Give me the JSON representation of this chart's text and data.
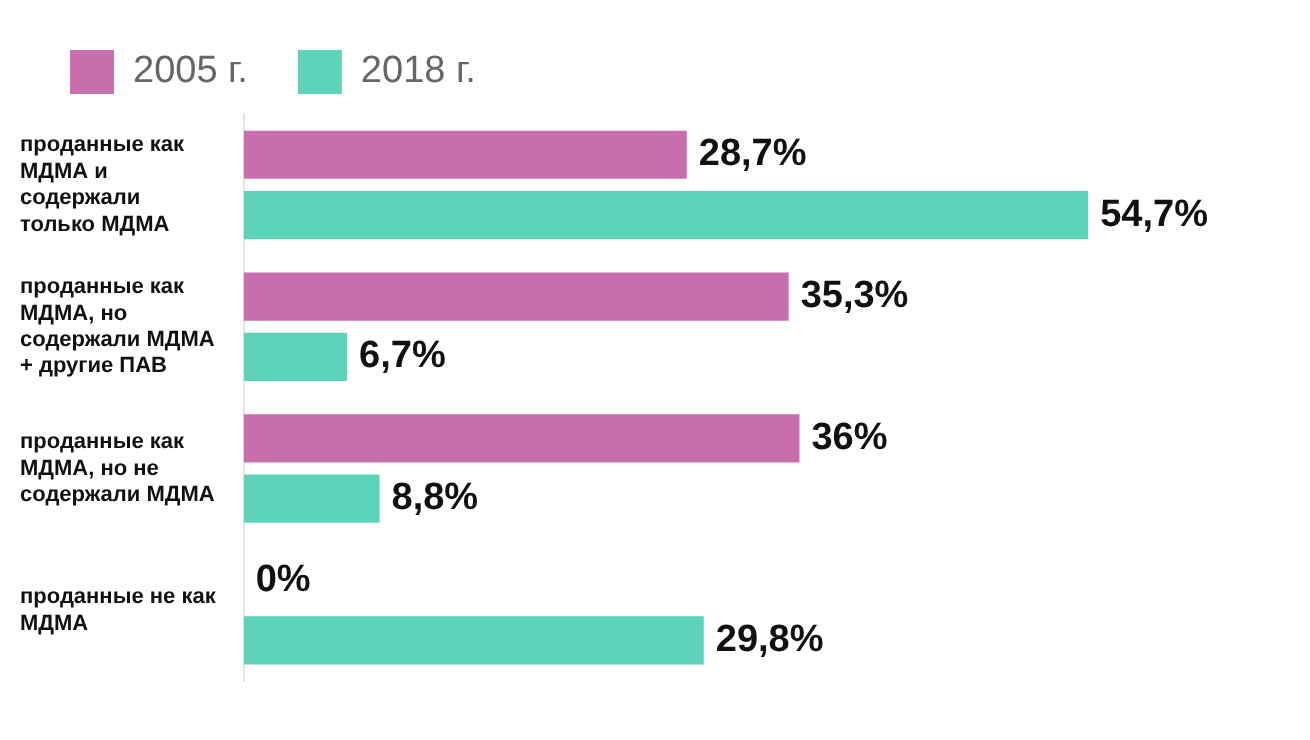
{
  "chart_data": {
    "type": "bar",
    "orientation": "horizontal",
    "legend": "top left",
    "categories": [
      "проданные как МДМА и содержали только МДМА",
      "проданные как МДМА, но содержали МДМА + другие ПАВ",
      "проданные как МДМА, но не содержали МДМА",
      "проданные не как МДМА"
    ],
    "series": [
      {
        "name": "2005 г.",
        "color": "#c86eae",
        "values": [
          28.7,
          35.3,
          36,
          0
        ],
        "value_labels": [
          "28,7%",
          "35,3%",
          "36%",
          "0%"
        ]
      },
      {
        "name": "2018 г.",
        "color": "#5dd3b9",
        "values": [
          54.7,
          6.7,
          8.8,
          29.8
        ],
        "value_labels": [
          "54,7%",
          "6,7%",
          "8,8%",
          "29,8%"
        ]
      }
    ]
  }
}
